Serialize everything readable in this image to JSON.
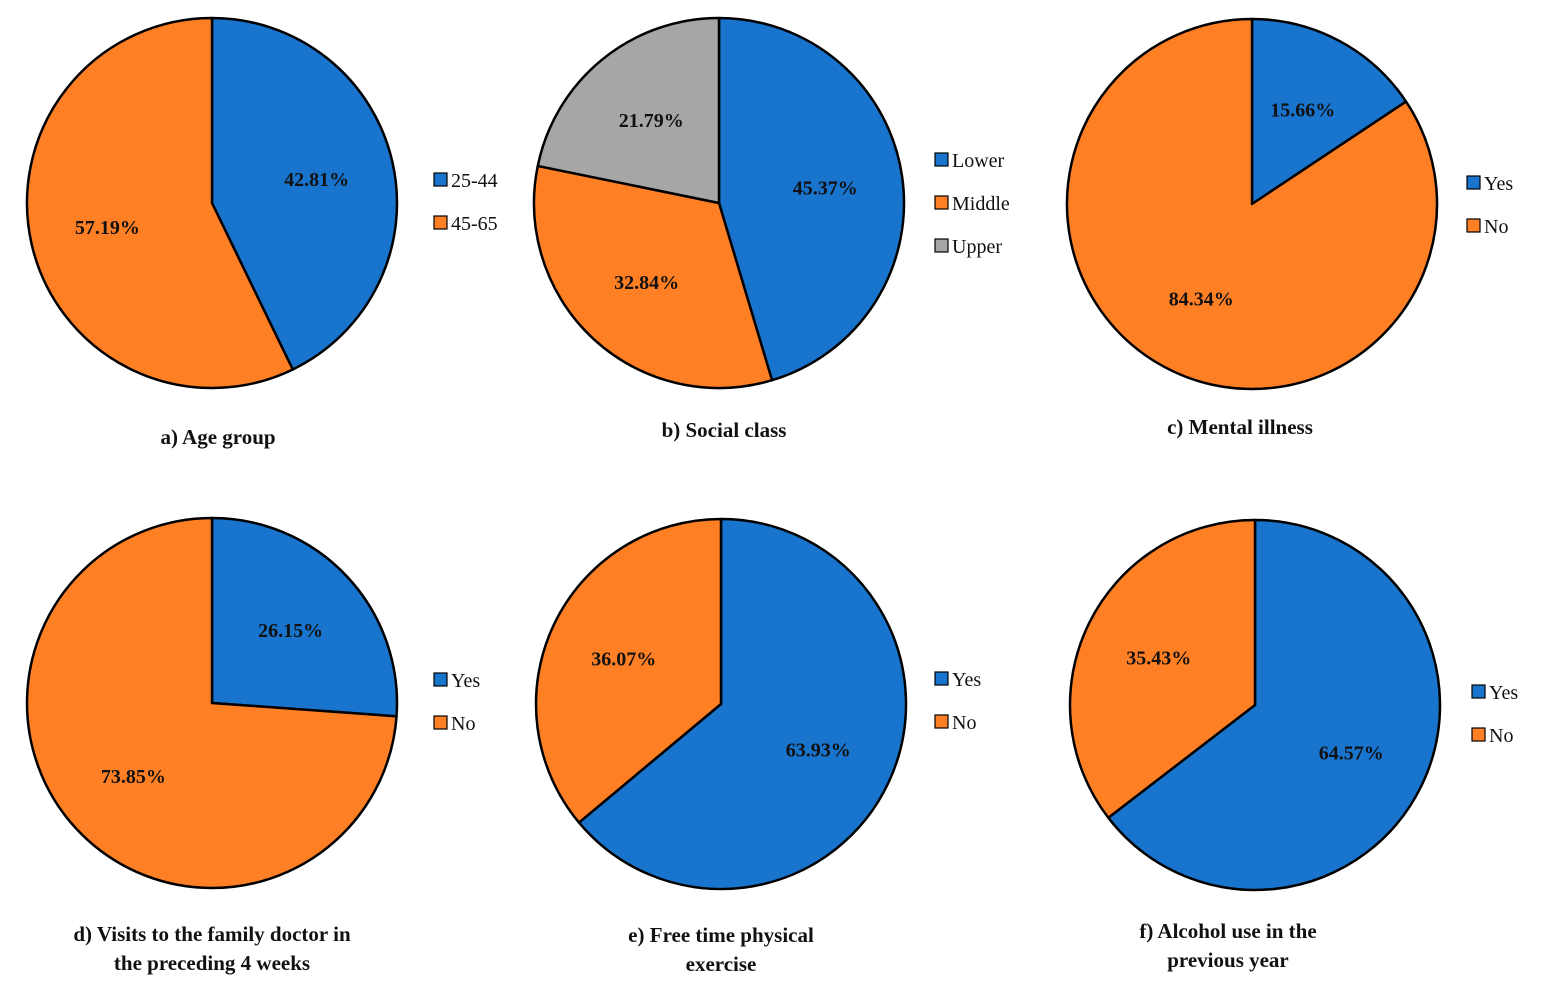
{
  "colors": {
    "blue": "#1874CD",
    "orange": "#FF7F24",
    "gray": "#A6A6A6"
  },
  "chart_data": [
    {
      "type": "pie",
      "caption": [
        "a) Age group"
      ],
      "slices": [
        {
          "label": "25-44",
          "value": 42.81,
          "display": "42.81%",
          "color": "#1874CD"
        },
        {
          "label": "45-65",
          "value": 57.19,
          "display": "57.19%",
          "color": "#FF7F24"
        }
      ],
      "legend": [
        "25-44",
        "45-65"
      ]
    },
    {
      "type": "pie",
      "caption": [
        "b) Social class"
      ],
      "slices": [
        {
          "label": "Lower",
          "value": 45.37,
          "display": "45.37%",
          "color": "#1874CD"
        },
        {
          "label": "Middle",
          "value": 32.84,
          "display": "32.84%",
          "color": "#FF7F24"
        },
        {
          "label": "Upper",
          "value": 21.79,
          "display": "21.79%",
          "color": "#A6A6A6"
        }
      ],
      "legend": [
        "Lower",
        "Middle",
        "Upper"
      ]
    },
    {
      "type": "pie",
      "caption": [
        "c) Mental illness"
      ],
      "slices": [
        {
          "label": "Yes",
          "value": 15.66,
          "display": "15.66%",
          "color": "#1874CD"
        },
        {
          "label": "No",
          "value": 84.34,
          "display": "84.34%",
          "color": "#FF7F24"
        }
      ],
      "legend": [
        "Yes",
        "No"
      ]
    },
    {
      "type": "pie",
      "caption": [
        "d) Visits to the family doctor in",
        "the preceding 4 weeks"
      ],
      "slices": [
        {
          "label": "Yes",
          "value": 26.15,
          "display": "26.15%",
          "color": "#1874CD"
        },
        {
          "label": "No",
          "value": 73.85,
          "display": "73.85%",
          "color": "#FF7F24"
        }
      ],
      "legend": [
        "Yes",
        "No"
      ]
    },
    {
      "type": "pie",
      "caption": [
        "e) Free time physical",
        "exercise"
      ],
      "slices": [
        {
          "label": "Yes",
          "value": 63.93,
          "display": "63.93%",
          "color": "#1874CD"
        },
        {
          "label": "No",
          "value": 36.07,
          "display": "36.07%",
          "color": "#FF7F24"
        }
      ],
      "legend": [
        "Yes",
        "No"
      ]
    },
    {
      "type": "pie",
      "caption": [
        "f) Alcohol use in the",
        "previous year"
      ],
      "slices": [
        {
          "label": "Yes",
          "value": 64.57,
          "display": "64.57%",
          "color": "#1874CD"
        },
        {
          "label": "No",
          "value": 35.43,
          "display": "35.43%",
          "color": "#FF7F24"
        }
      ],
      "legend": [
        "Yes",
        "No"
      ]
    }
  ]
}
